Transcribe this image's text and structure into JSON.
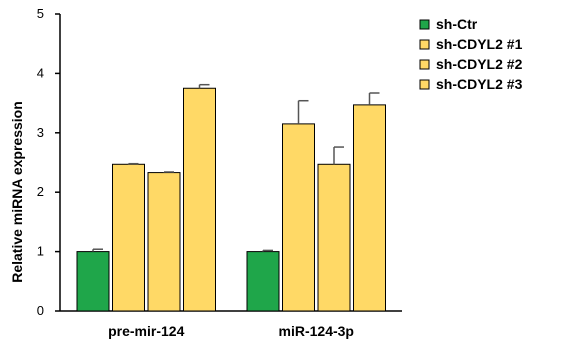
{
  "chart_data": {
    "type": "bar",
    "title": "",
    "xlabel": "",
    "ylabel": "Relative miRNA expression",
    "ylim": [
      0,
      5
    ],
    "yticks": [
      0,
      1,
      2,
      3,
      4,
      5
    ],
    "categories": [
      "pre-mir-124",
      "miR-124-3p"
    ],
    "series": [
      {
        "name": "sh-Ctr",
        "color": "#1fa64a",
        "values": [
          1.0,
          1.0
        ],
        "errors": [
          0.04,
          0.02
        ]
      },
      {
        "name": "sh-CDYL2 #1",
        "color": "#ffd966",
        "values": [
          2.47,
          3.15
        ],
        "errors": [
          0.01,
          0.39
        ]
      },
      {
        "name": "sh-CDYL2 #2",
        "color": "#ffd966",
        "values": [
          2.33,
          2.47
        ],
        "errors": [
          0.01,
          0.29
        ]
      },
      {
        "name": "sh-CDYL2 #3",
        "color": "#ffd966",
        "values": [
          3.75,
          3.47
        ],
        "errors": [
          0.06,
          0.2
        ]
      }
    ],
    "legend_position": "top-right",
    "grid": false
  }
}
